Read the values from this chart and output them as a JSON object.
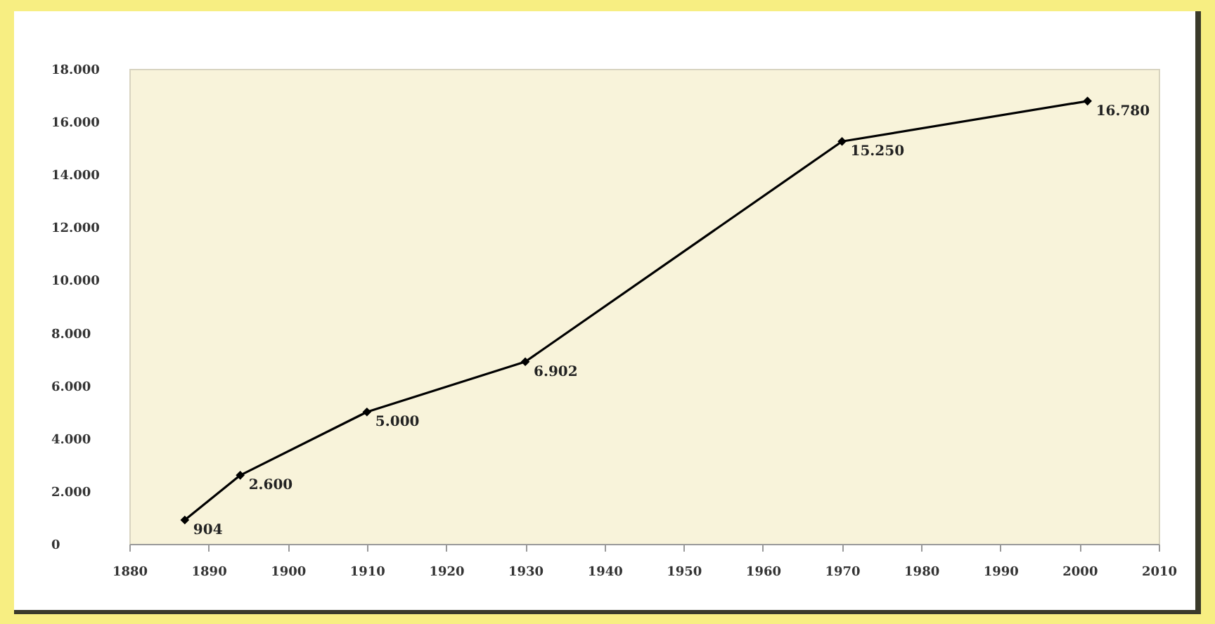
{
  "chart_data": {
    "type": "line",
    "x": [
      1887,
      1894,
      1910,
      1930,
      1970,
      2001
    ],
    "series": [
      {
        "color": "#000000",
        "values": [
          904,
          2600,
          5000,
          6902,
          15250,
          16780
        ],
        "value_labels": [
          "904",
          "2.600",
          "5.000",
          "6.902",
          "15.250",
          "16.780"
        ]
      }
    ],
    "xlim": [
      1880,
      2010
    ],
    "xticks": [
      1880,
      1890,
      1900,
      1910,
      1920,
      1930,
      1940,
      1950,
      1960,
      1970,
      1980,
      1990,
      2000,
      2010
    ],
    "ylim": [
      0,
      18000
    ],
    "yticks": [
      {
        "value": 0,
        "label": "0"
      },
      {
        "value": 2000,
        "label": "2.000"
      },
      {
        "value": 4000,
        "label": "4.000"
      },
      {
        "value": 6000,
        "label": "6.000"
      },
      {
        "value": 8000,
        "label": "8.000"
      },
      {
        "value": 10000,
        "label": "10.000"
      },
      {
        "value": 12000,
        "label": "12.000"
      },
      {
        "value": 14000,
        "label": "14.000"
      },
      {
        "value": 16000,
        "label": "16.000"
      },
      {
        "value": 18000,
        "label": "18.000"
      }
    ],
    "grid": false,
    "marker": "diamond",
    "line_style": "solid"
  }
}
